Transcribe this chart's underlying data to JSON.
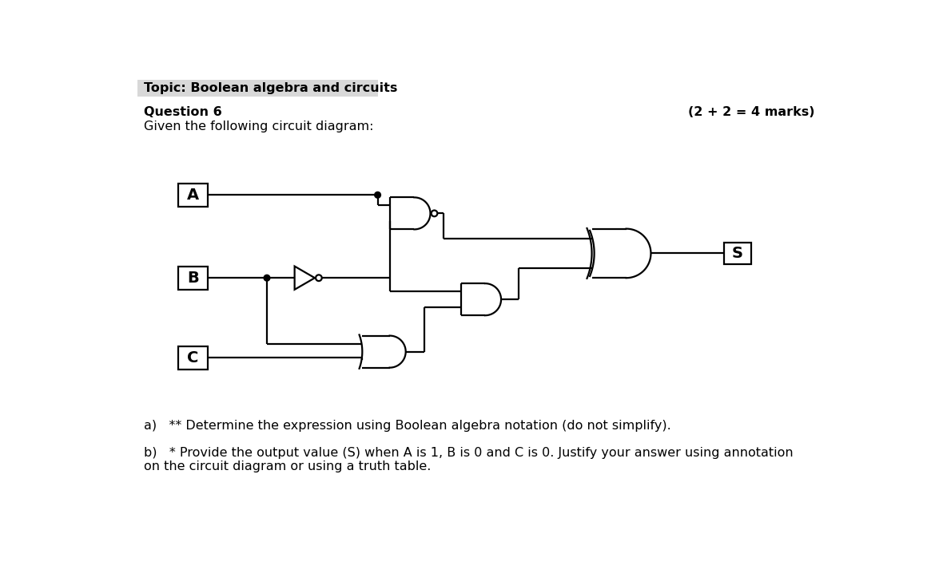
{
  "title": "Topic: Boolean algebra and circuits",
  "question": "Question 6",
  "marks": "(2 + 2 = 4 marks)",
  "given_text": "Given the following circuit diagram:",
  "part_a": "a)   ** Determine the expression using Boolean algebra notation (do not simplify).",
  "part_b": "b)   * Provide the output value (S) when A is 1, B is 0 and C is 0. Justify your answer using annotation\non the circuit diagram or using a truth table.",
  "bg_color": "#ffffff",
  "line_color": "#000000",
  "title_bg_color": "#d8d8d8",
  "lw": 1.6
}
